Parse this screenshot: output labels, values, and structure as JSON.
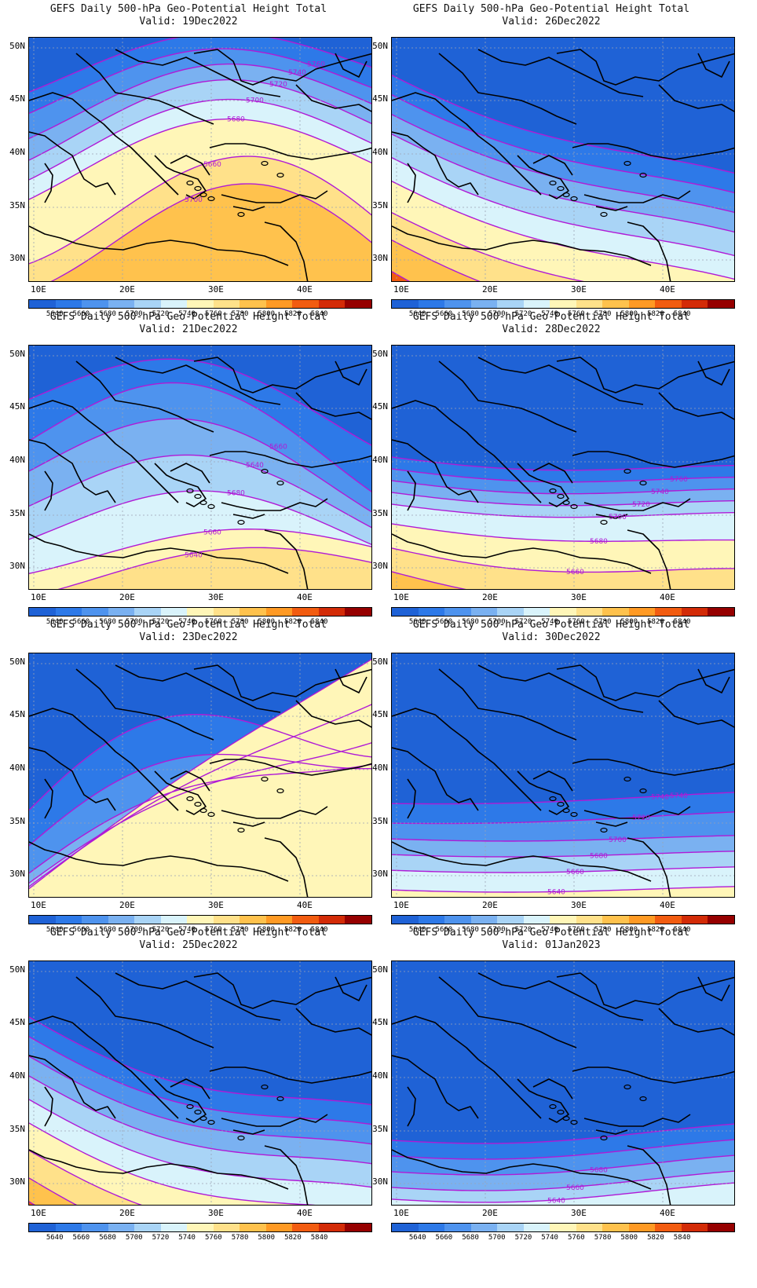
{
  "colorbar": {
    "levels": [
      "5640",
      "5660",
      "5680",
      "5700",
      "5720",
      "5740",
      "5760",
      "5780",
      "5800",
      "5820",
      "5840"
    ],
    "colors": [
      "#1f62d6",
      "#2d79e8",
      "#4e93ee",
      "#7ab1f1",
      "#a9d4f6",
      "#d9f3fb",
      "#fff6b8",
      "#ffe18a",
      "#ffc24d",
      "#ff9a24",
      "#f25c10",
      "#d32b07",
      "#960000"
    ]
  },
  "lat_labels": [
    "50N",
    "45N",
    "40N",
    "35N",
    "30N"
  ],
  "lon_labels": [
    "10E",
    "20E",
    "30E",
    "40E"
  ],
  "panels": [
    {
      "title": "GEFS Daily 500-hPa Geo-Potential Height Total",
      "valid": "Valid: 19Dec2022",
      "colors": [
        "#ffc24d",
        "#ffe18a",
        "#fff6b8",
        "#d9f3fb",
        "#a9d4f6",
        "#7ab1f1",
        "#4e93ee",
        "#2d79e8",
        "#1f62d6"
      ],
      "contour_labels": [
        "5700",
        "5660",
        "5680",
        "5700",
        "5720",
        "5740",
        "5760"
      ]
    },
    {
      "title": "GEFS Daily 500-hPa Geo-Potential Height Total",
      "valid": "Valid: 26Dec2022",
      "colors": [
        "#f25c10",
        "#ffc24d",
        "#ffe18a",
        "#fff6b8",
        "#d9f3fb",
        "#a9d4f6",
        "#7ab1f1",
        "#4e93ee",
        "#2d79e8",
        "#1f62d6"
      ],
      "contour_labels": []
    },
    {
      "title": "GEFS Daily 500-hPa Geo-Potential Height Total",
      "valid": "Valid: 21Dec2022",
      "colors": [
        "#ffe18a",
        "#fff6b8",
        "#d9f3fb",
        "#a9d4f6",
        "#7ab1f1",
        "#4e93ee",
        "#2d79e8",
        "#1f62d6"
      ],
      "contour_labels": [
        "5640",
        "5660",
        "5680",
        "5640",
        "5660"
      ]
    },
    {
      "title": "GEFS Daily 500-hPa Geo-Potential Height Total",
      "valid": "Valid: 28Dec2022",
      "colors": [
        "#ffc24d",
        "#ffe18a",
        "#fff6b8",
        "#d9f3fb",
        "#a9d4f6",
        "#7ab1f1",
        "#4e93ee",
        "#2d79e8",
        "#1f62d6"
      ],
      "contour_labels": [
        "5640",
        "5660",
        "5680",
        "5700",
        "5720",
        "5740",
        "5760"
      ]
    },
    {
      "title": "GEFS Daily 500-hPa Geo-Potential Height Total",
      "valid": "Valid: 23Dec2022",
      "colors": [
        "#fff6b8",
        "#d9f3fb",
        "#a9d4f6",
        "#7ab1f1",
        "#4e93ee",
        "#2d79e8",
        "#1f62d6"
      ],
      "contour_labels": []
    },
    {
      "title": "GEFS Daily 500-hPa Geo-Potential Height Total",
      "valid": "Valid: 30Dec2022",
      "colors": [
        "#fff6b8",
        "#d9f3fb",
        "#a9d4f6",
        "#7ab1f1",
        "#4e93ee",
        "#2d79e8",
        "#1f62d6"
      ],
      "contour_labels": [
        "5640",
        "5660",
        "5680",
        "5700",
        "5720",
        "5740",
        "5740"
      ]
    },
    {
      "title": "GEFS Daily 500-hPa Geo-Potential Height Total",
      "valid": "Valid: 25Dec2022",
      "colors": [
        "#f25c10",
        "#ffc24d",
        "#ffe18a",
        "#fff6b8",
        "#d9f3fb",
        "#a9d4f6",
        "#7ab1f1",
        "#4e93ee",
        "#2d79e8",
        "#1f62d6"
      ],
      "contour_labels": []
    },
    {
      "title": "GEFS Daily 500-hPa Geo-Potential Height Total",
      "valid": "Valid: 01Jan2023",
      "colors": [
        "#d9f3fb",
        "#a9d4f6",
        "#7ab1f1",
        "#4e93ee",
        "#2d79e8",
        "#1f62d6"
      ],
      "contour_labels": [
        "5640",
        "5660",
        "5680"
      ]
    }
  ]
}
